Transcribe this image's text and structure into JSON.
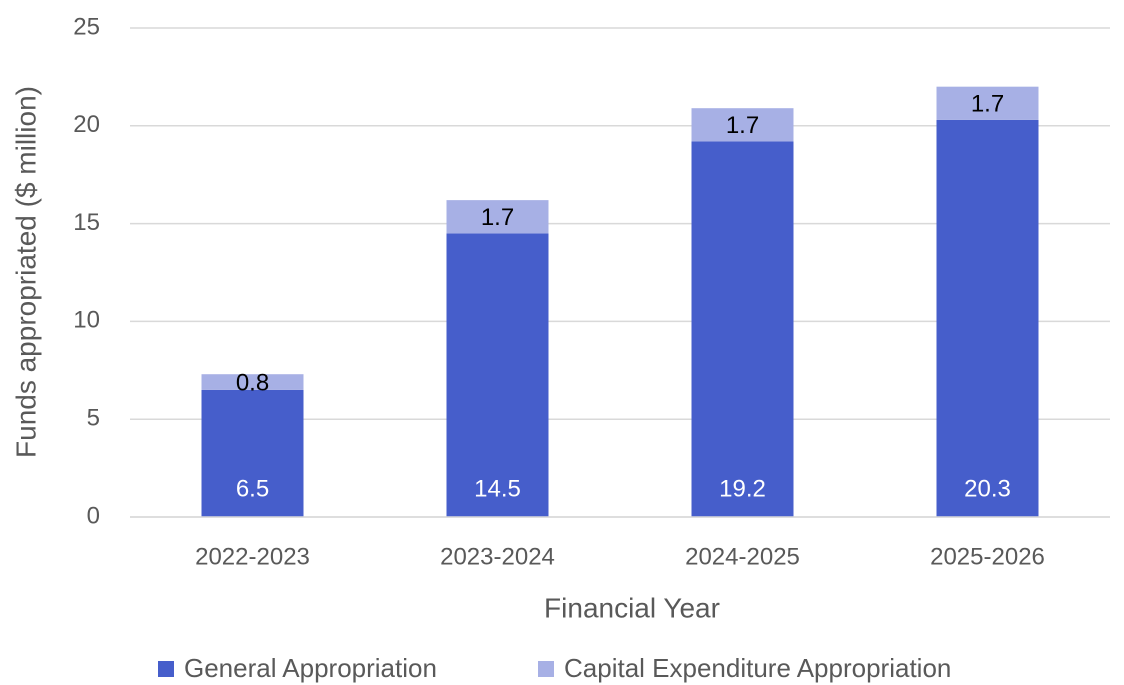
{
  "chart_data": {
    "type": "stacked_bar",
    "x_label": "Financial Year",
    "y_label": "Funds appropriated ($ million)",
    "categories": [
      "2022-2023",
      "2023-2024",
      "2024-2025",
      "2025-2026"
    ],
    "series": [
      {
        "name": "General Appropriation",
        "color": "#465ecb",
        "values": [
          6.5,
          14.5,
          19.2,
          20.3
        ]
      },
      {
        "name": "Capital Expenditure Appropriation",
        "color": "#a7b0e5",
        "values": [
          0.8,
          1.7,
          1.7,
          1.7
        ]
      }
    ],
    "ylim": [
      0,
      25
    ],
    "yticks": [
      0,
      5,
      10,
      15,
      20,
      25
    ],
    "grid": true,
    "legend": "bottom"
  }
}
